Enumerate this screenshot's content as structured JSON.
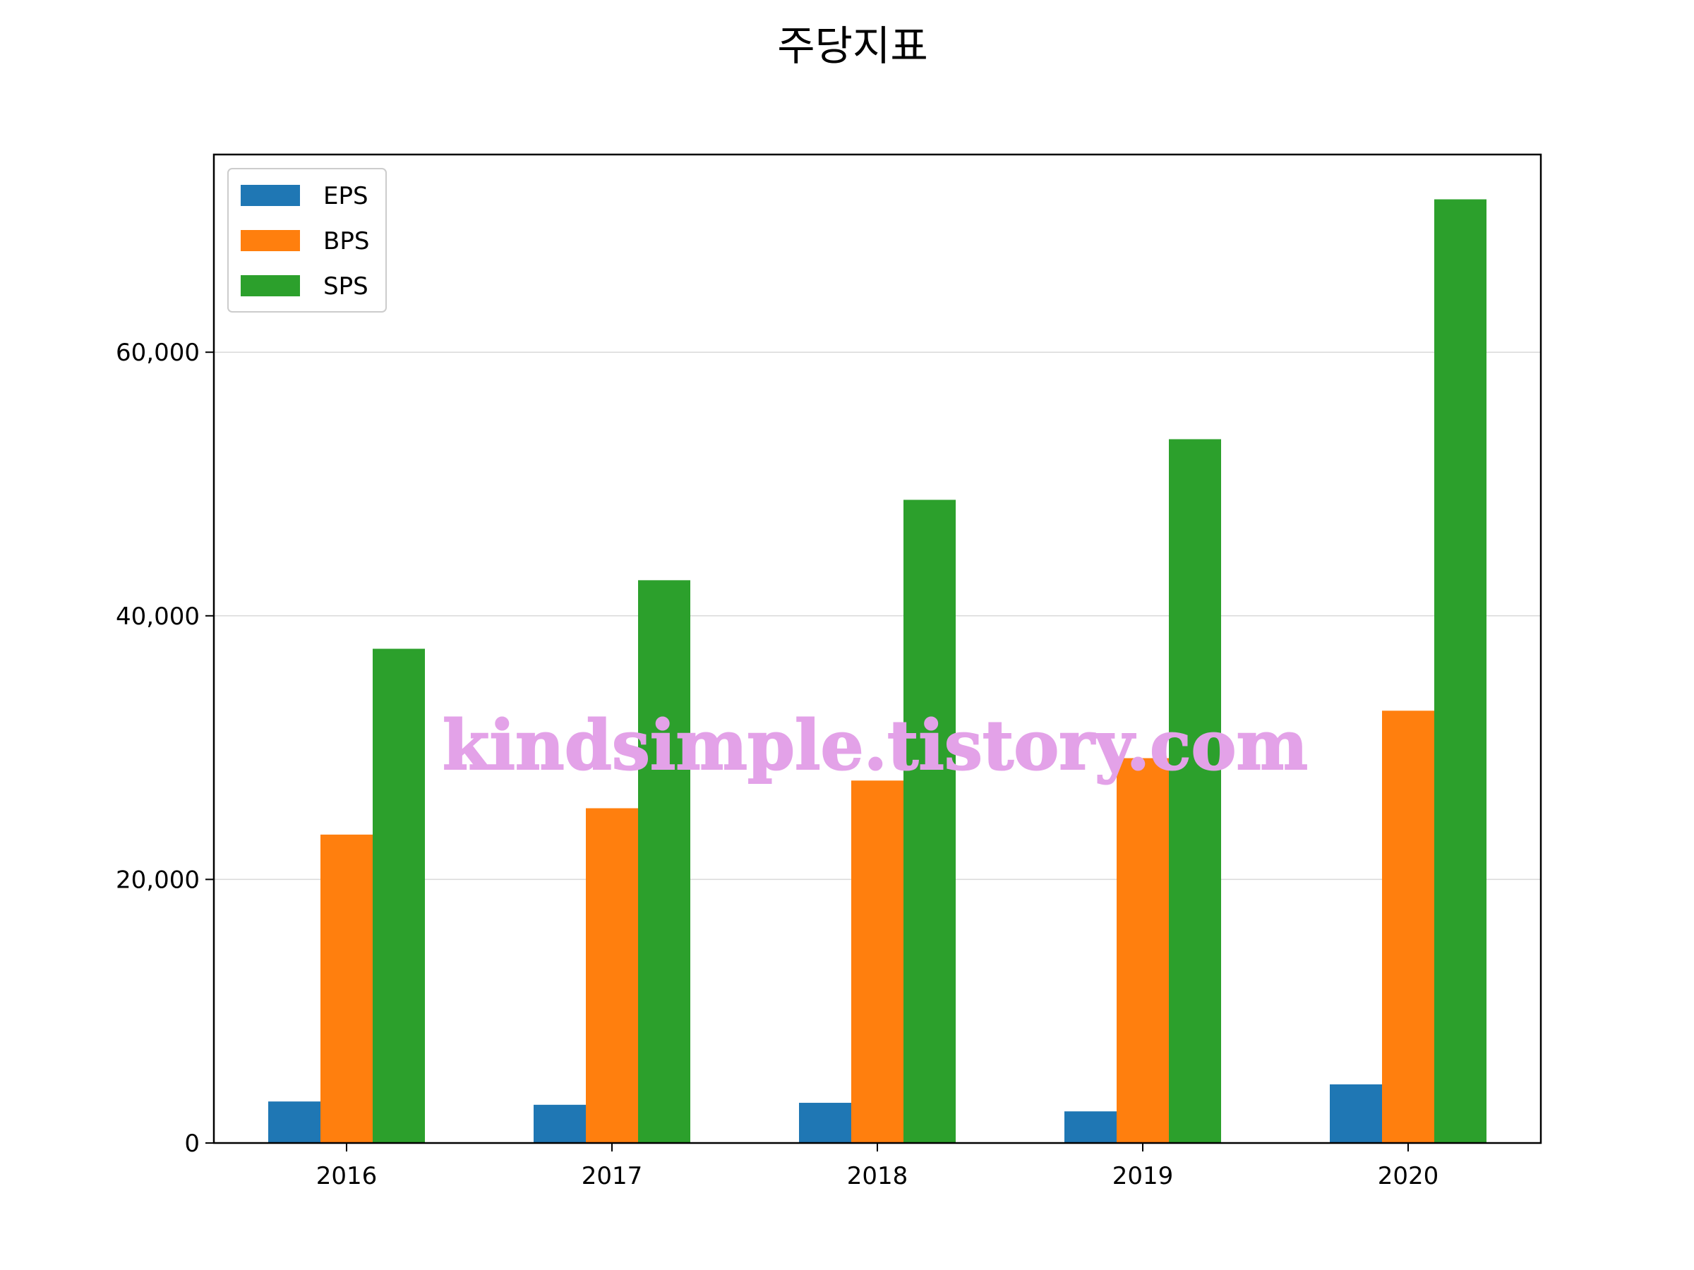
{
  "chart_data": {
    "type": "bar",
    "title": "주당지표",
    "xlabel": "",
    "ylabel": "",
    "categories": [
      "2016",
      "2017",
      "2018",
      "2019",
      "2020"
    ],
    "series": [
      {
        "name": "EPS",
        "color": "#1f77b4",
        "values": [
          3150,
          2900,
          3050,
          2400,
          4450
        ]
      },
      {
        "name": "BPS",
        "color": "#ff7f0e",
        "values": [
          23400,
          25400,
          27500,
          29200,
          32800
        ]
      },
      {
        "name": "SPS",
        "color": "#2ca02c",
        "values": [
          37500,
          42700,
          48800,
          53400,
          71600
        ]
      }
    ],
    "ylim": [
      0,
      75000
    ],
    "yticks": [
      0,
      20000,
      40000,
      60000
    ],
    "ytick_labels": [
      "0",
      "20,000",
      "40,000",
      "60,000"
    ],
    "grid": "horizontal",
    "legend_position": "top-left"
  },
  "watermark": "kindsimple.tistory.com"
}
